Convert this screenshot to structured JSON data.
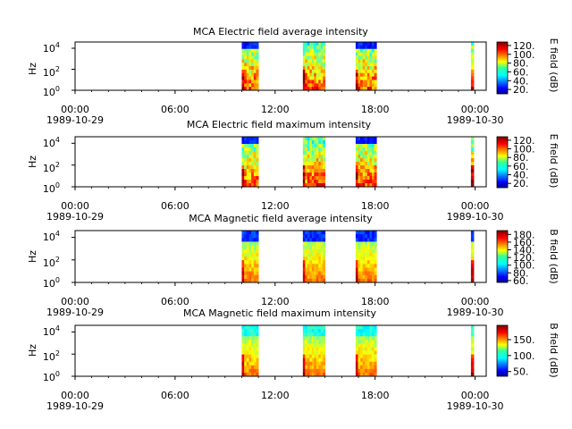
{
  "figure": {
    "x_ticks": [
      {
        "time": "00:00",
        "date": "1989-10-29"
      },
      {
        "time": "06:00",
        "date": ""
      },
      {
        "time": "12:00",
        "date": ""
      },
      {
        "time": "18:00",
        "date": ""
      },
      {
        "time": "00:00",
        "date": "1989-10-30"
      }
    ],
    "colormap": "jet"
  },
  "chart_data": [
    {
      "type": "heatmap",
      "title": "MCA  Electric field average intensity",
      "ylabel": "Hz",
      "y_scale": "log",
      "y_tick_labels": [
        "10^0",
        "10^2",
        "10^4"
      ],
      "x_range": [
        "1989-10-29 00:00",
        "1989-10-30 00:40"
      ],
      "colorbar_label": "E field (dB)",
      "colorbar_ticks": [
        "20.",
        "40.",
        "60.",
        "80.",
        "100.",
        "120."
      ],
      "colorbar_range": [
        10,
        128
      ],
      "data_intervals": [
        {
          "start": "1989-10-29 10:00",
          "end": "1989-10-29 11:00"
        },
        {
          "start": "1989-10-29 13:40",
          "end": "1989-10-29 15:00"
        },
        {
          "start": "1989-10-29 16:50",
          "end": "1989-10-29 18:05"
        },
        {
          "start": "1989-10-29 23:45",
          "end": "1989-10-29 23:55"
        }
      ]
    },
    {
      "type": "heatmap",
      "title": "MCA  Electric field maximum intensity",
      "ylabel": "Hz",
      "y_scale": "log",
      "y_tick_labels": [
        "10^0",
        "10^2",
        "10^4"
      ],
      "x_range": [
        "1989-10-29 00:00",
        "1989-10-30 00:40"
      ],
      "colorbar_label": "E field (dB)",
      "colorbar_ticks": [
        "20.",
        "40.",
        "60.",
        "80.",
        "100.",
        "120."
      ],
      "colorbar_range": [
        10,
        128
      ],
      "data_intervals": [
        {
          "start": "1989-10-29 10:00",
          "end": "1989-10-29 11:00"
        },
        {
          "start": "1989-10-29 13:40",
          "end": "1989-10-29 15:00"
        },
        {
          "start": "1989-10-29 16:50",
          "end": "1989-10-29 18:05"
        },
        {
          "start": "1989-10-29 23:45",
          "end": "1989-10-29 23:55"
        }
      ]
    },
    {
      "type": "heatmap",
      "title": "MCA  Magnetic field average intensity",
      "ylabel": "Hz",
      "y_scale": "log",
      "y_tick_labels": [
        "10^0",
        "10^2",
        "10^4"
      ],
      "x_range": [
        "1989-10-29 00:00",
        "1989-10-30 00:40"
      ],
      "colorbar_label": "B field (dB)",
      "colorbar_ticks": [
        "60.",
        "80.",
        "100.",
        "120.",
        "140.",
        "160.",
        "180."
      ],
      "colorbar_range": [
        55,
        190
      ],
      "data_intervals": [
        {
          "start": "1989-10-29 10:00",
          "end": "1989-10-29 11:00"
        },
        {
          "start": "1989-10-29 13:40",
          "end": "1989-10-29 15:00"
        },
        {
          "start": "1989-10-29 16:50",
          "end": "1989-10-29 18:05"
        },
        {
          "start": "1989-10-29 23:45",
          "end": "1989-10-29 23:55"
        }
      ]
    },
    {
      "type": "heatmap",
      "title": "MCA  Magnetic field maximum intensity",
      "ylabel": "Hz",
      "y_scale": "log",
      "y_tick_labels": [
        "10^0",
        "10^2",
        "10^4"
      ],
      "x_range": [
        "1989-10-29 00:00",
        "1989-10-30 00:40"
      ],
      "colorbar_label": "B field (dB)",
      "colorbar_ticks": [
        "50.",
        "100.",
        "150."
      ],
      "colorbar_range": [
        35,
        195
      ],
      "data_intervals": [
        {
          "start": "1989-10-29 10:00",
          "end": "1989-10-29 11:00"
        },
        {
          "start": "1989-10-29 13:40",
          "end": "1989-10-29 15:00"
        },
        {
          "start": "1989-10-29 16:50",
          "end": "1989-10-29 18:05"
        },
        {
          "start": "1989-10-29 23:45",
          "end": "1989-10-29 23:55"
        }
      ]
    }
  ]
}
